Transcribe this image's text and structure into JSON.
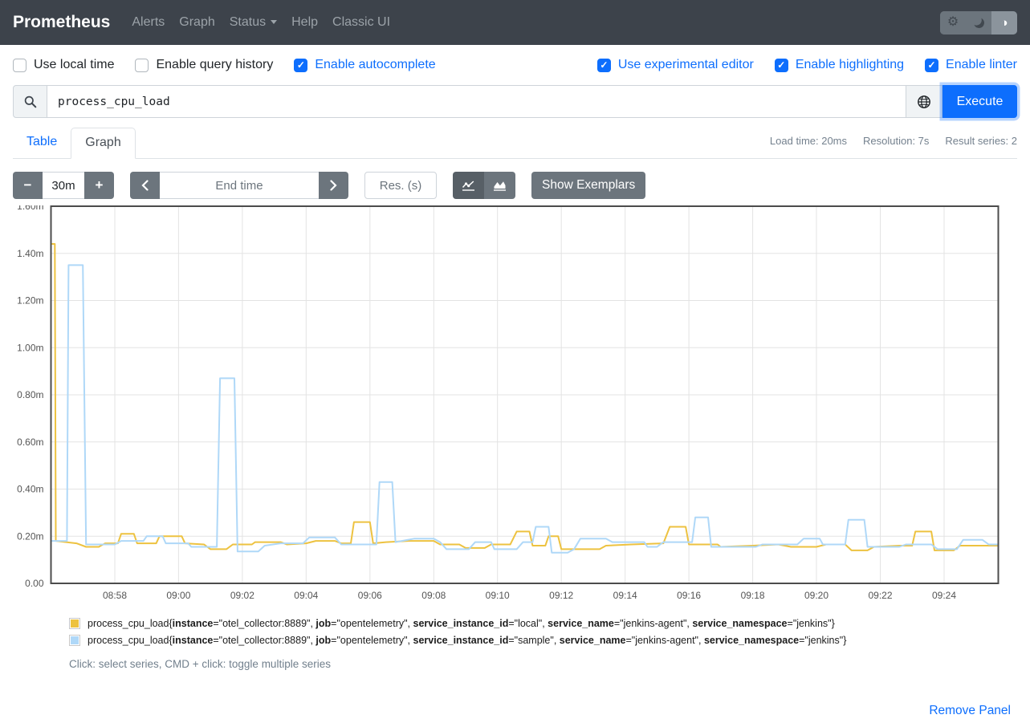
{
  "navbar": {
    "brand": "Prometheus",
    "items": [
      {
        "label": "Alerts",
        "dropdown": false
      },
      {
        "label": "Graph",
        "dropdown": false
      },
      {
        "label": "Status",
        "dropdown": true
      },
      {
        "label": "Help",
        "dropdown": false
      },
      {
        "label": "Classic UI",
        "dropdown": false
      }
    ],
    "theme_toggle": {
      "options": [
        "light",
        "dark",
        "auto"
      ],
      "active": "auto",
      "icons": [
        "gear-icon",
        "moon-icon",
        "contrast-icon"
      ]
    }
  },
  "settings": {
    "left": [
      {
        "label": "Use local time",
        "checked": false
      },
      {
        "label": "Enable query history",
        "checked": false
      },
      {
        "label": "Enable autocomplete",
        "checked": true
      }
    ],
    "right": [
      {
        "label": "Use experimental editor",
        "checked": true
      },
      {
        "label": "Enable highlighting",
        "checked": true
      },
      {
        "label": "Enable linter",
        "checked": true
      }
    ]
  },
  "query": {
    "value": "process_cpu_load",
    "execute_label": "Execute",
    "icons": {
      "left": "search-icon",
      "explorer": "globe-icon"
    }
  },
  "stats": {
    "load_time": "Load time: 20ms",
    "resolution": "Resolution: 7s",
    "result_series": "Result series: 2"
  },
  "tabs": [
    {
      "label": "Table",
      "active": false
    },
    {
      "label": "Graph",
      "active": true
    }
  ],
  "toolbar": {
    "range": "30m",
    "minus_label": "−",
    "plus_label": "+",
    "end_time_placeholder": "End time",
    "res_placeholder": "Res. (s)",
    "show_exemplars": "Show Exemplars",
    "chart_type_icons": [
      "line-chart-icon",
      "stacked-chart-icon"
    ],
    "chart_type_active": "line"
  },
  "chart_data": {
    "type": "line",
    "grid": true,
    "legend_position": "bottom",
    "x_axis": {
      "ticks": [
        "08:58",
        "09:00",
        "09:02",
        "09:04",
        "09:06",
        "09:08",
        "09:10",
        "09:12",
        "09:14",
        "09:16",
        "09:18",
        "09:20",
        "09:22",
        "09:24"
      ],
      "tick_minutes": [
        2,
        4,
        6,
        8,
        10,
        12,
        14,
        16,
        18,
        20,
        22,
        24,
        26,
        28
      ],
      "range_minutes": [
        0,
        29.7
      ],
      "window": "30m"
    },
    "y_axis": {
      "ticks": [
        "0.00",
        "0.20m",
        "0.40m",
        "0.60m",
        "0.80m",
        "1.00m",
        "1.20m",
        "1.40m",
        "1.60m"
      ],
      "tick_values": [
        0,
        0.2,
        0.4,
        0.6,
        0.8,
        1.0,
        1.2,
        1.4,
        1.6
      ],
      "range": [
        0,
        1.6
      ],
      "unit_note": "values in milli (m)"
    },
    "series": [
      {
        "name": "process_cpu_load service_instance_id=local",
        "color": "#EDC240",
        "points": [
          [
            0,
            1.44
          ],
          [
            0.12,
            1.44
          ],
          [
            0.15,
            0.18
          ],
          [
            0.8,
            0.17
          ],
          [
            1.1,
            0.155
          ],
          [
            1.5,
            0.155
          ],
          [
            1.7,
            0.17
          ],
          [
            2.1,
            0.17
          ],
          [
            2.2,
            0.21
          ],
          [
            2.6,
            0.21
          ],
          [
            2.7,
            0.17
          ],
          [
            3.3,
            0.17
          ],
          [
            3.4,
            0.2
          ],
          [
            4.1,
            0.2
          ],
          [
            4.2,
            0.17
          ],
          [
            4.8,
            0.165
          ],
          [
            5.0,
            0.145
          ],
          [
            5.5,
            0.145
          ],
          [
            5.7,
            0.165
          ],
          [
            6.3,
            0.165
          ],
          [
            6.4,
            0.175
          ],
          [
            7.2,
            0.175
          ],
          [
            7.4,
            0.165
          ],
          [
            8.0,
            0.17
          ],
          [
            8.3,
            0.18
          ],
          [
            8.9,
            0.18
          ],
          [
            9.1,
            0.17
          ],
          [
            9.4,
            0.17
          ],
          [
            9.5,
            0.26
          ],
          [
            10.0,
            0.26
          ],
          [
            10.1,
            0.17
          ],
          [
            10.5,
            0.175
          ],
          [
            11.2,
            0.18
          ],
          [
            12.0,
            0.18
          ],
          [
            12.2,
            0.165
          ],
          [
            12.8,
            0.165
          ],
          [
            13.0,
            0.15
          ],
          [
            13.6,
            0.15
          ],
          [
            13.8,
            0.165
          ],
          [
            14.4,
            0.165
          ],
          [
            14.6,
            0.22
          ],
          [
            15.0,
            0.22
          ],
          [
            15.1,
            0.16
          ],
          [
            15.5,
            0.16
          ],
          [
            15.6,
            0.2
          ],
          [
            15.9,
            0.2
          ],
          [
            16.0,
            0.145
          ],
          [
            17.2,
            0.145
          ],
          [
            17.4,
            0.16
          ],
          [
            18.2,
            0.165
          ],
          [
            19.2,
            0.17
          ],
          [
            19.4,
            0.24
          ],
          [
            19.9,
            0.24
          ],
          [
            20.0,
            0.165
          ],
          [
            20.9,
            0.165
          ],
          [
            21.0,
            0.155
          ],
          [
            22.0,
            0.16
          ],
          [
            22.8,
            0.165
          ],
          [
            23.2,
            0.155
          ],
          [
            24.0,
            0.155
          ],
          [
            24.3,
            0.165
          ],
          [
            24.9,
            0.165
          ],
          [
            25.1,
            0.14
          ],
          [
            25.6,
            0.14
          ],
          [
            25.8,
            0.155
          ],
          [
            26.6,
            0.16
          ],
          [
            27.0,
            0.16
          ],
          [
            27.1,
            0.22
          ],
          [
            27.6,
            0.22
          ],
          [
            27.7,
            0.14
          ],
          [
            28.3,
            0.14
          ],
          [
            28.5,
            0.16
          ],
          [
            29.7,
            0.16
          ]
        ]
      },
      {
        "name": "process_cpu_load service_instance_id=sample",
        "color": "#AFD8F8",
        "points": [
          [
            0,
            0.18
          ],
          [
            0.5,
            0.18
          ],
          [
            0.55,
            1.35
          ],
          [
            1.0,
            1.35
          ],
          [
            1.1,
            0.165
          ],
          [
            2.0,
            0.165
          ],
          [
            2.2,
            0.18
          ],
          [
            2.9,
            0.18
          ],
          [
            3.0,
            0.2
          ],
          [
            3.5,
            0.2
          ],
          [
            3.6,
            0.17
          ],
          [
            4.3,
            0.17
          ],
          [
            4.4,
            0.155
          ],
          [
            5.2,
            0.155
          ],
          [
            5.3,
            0.87
          ],
          [
            5.75,
            0.87
          ],
          [
            5.85,
            0.135
          ],
          [
            6.5,
            0.135
          ],
          [
            6.7,
            0.16
          ],
          [
            7.2,
            0.17
          ],
          [
            7.9,
            0.17
          ],
          [
            8.1,
            0.195
          ],
          [
            8.9,
            0.195
          ],
          [
            9.1,
            0.165
          ],
          [
            9.9,
            0.165
          ],
          [
            10.2,
            0.165
          ],
          [
            10.3,
            0.43
          ],
          [
            10.7,
            0.43
          ],
          [
            10.8,
            0.175
          ],
          [
            11.4,
            0.19
          ],
          [
            12.0,
            0.19
          ],
          [
            12.2,
            0.175
          ],
          [
            12.4,
            0.145
          ],
          [
            13.1,
            0.145
          ],
          [
            13.3,
            0.175
          ],
          [
            13.8,
            0.175
          ],
          [
            13.9,
            0.145
          ],
          [
            14.6,
            0.145
          ],
          [
            14.8,
            0.175
          ],
          [
            15.1,
            0.175
          ],
          [
            15.2,
            0.24
          ],
          [
            15.6,
            0.24
          ],
          [
            15.7,
            0.13
          ],
          [
            16.2,
            0.13
          ],
          [
            16.4,
            0.145
          ],
          [
            16.6,
            0.19
          ],
          [
            17.4,
            0.19
          ],
          [
            17.6,
            0.175
          ],
          [
            18.6,
            0.175
          ],
          [
            18.7,
            0.155
          ],
          [
            19.0,
            0.155
          ],
          [
            19.2,
            0.175
          ],
          [
            20.1,
            0.175
          ],
          [
            20.2,
            0.28
          ],
          [
            20.6,
            0.28
          ],
          [
            20.7,
            0.155
          ],
          [
            22.1,
            0.155
          ],
          [
            22.3,
            0.165
          ],
          [
            23.4,
            0.165
          ],
          [
            23.6,
            0.19
          ],
          [
            24.1,
            0.19
          ],
          [
            24.2,
            0.165
          ],
          [
            24.9,
            0.165
          ],
          [
            25.0,
            0.27
          ],
          [
            25.5,
            0.27
          ],
          [
            25.6,
            0.155
          ],
          [
            26.6,
            0.155
          ],
          [
            26.8,
            0.165
          ],
          [
            27.6,
            0.165
          ],
          [
            27.8,
            0.145
          ],
          [
            28.4,
            0.145
          ],
          [
            28.6,
            0.185
          ],
          [
            29.2,
            0.185
          ],
          [
            29.4,
            0.165
          ],
          [
            29.7,
            0.165
          ]
        ]
      }
    ]
  },
  "legend": {
    "items": [
      {
        "color": "#EDC240",
        "metric": "process_cpu_load",
        "labels": [
          [
            "instance",
            "otel_collector:8889"
          ],
          [
            "job",
            "opentelemetry"
          ],
          [
            "service_instance_id",
            "local"
          ],
          [
            "service_name",
            "jenkins-agent"
          ],
          [
            "service_namespace",
            "jenkins"
          ]
        ]
      },
      {
        "color": "#AFD8F8",
        "metric": "process_cpu_load",
        "labels": [
          [
            "instance",
            "otel_collector:8889"
          ],
          [
            "job",
            "opentelemetry"
          ],
          [
            "service_instance_id",
            "sample"
          ],
          [
            "service_name",
            "jenkins-agent"
          ],
          [
            "service_namespace",
            "jenkins"
          ]
        ]
      }
    ],
    "hint": "Click: select series, CMD + click: toggle multiple series"
  },
  "footer": {
    "remove_panel": "Remove Panel"
  },
  "colors": {
    "navbar_bg": "#3d434b",
    "accent_blue": "#0d6efd",
    "button_gray": "#6c757d",
    "series_yellow": "#EDC240",
    "series_blue": "#AFD8F8"
  }
}
